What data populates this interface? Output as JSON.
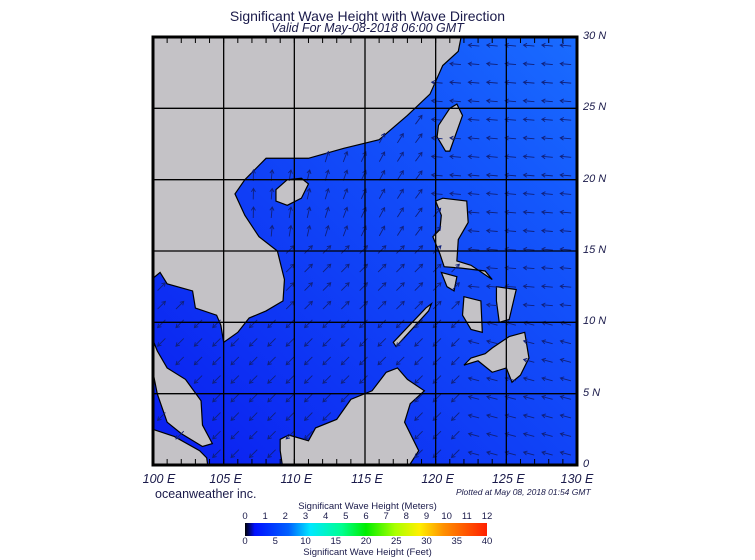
{
  "header": {
    "title": "Significant Wave Height with Wave Direction",
    "subtitle": "Valid For May-08-2018 06:00 GMT"
  },
  "map": {
    "lon_range": [
      100,
      130
    ],
    "lat_range": [
      0,
      30
    ],
    "lat_labels": [
      "30 N",
      "25 N",
      "20 N",
      "15 N",
      "10 N",
      "5 N",
      "0"
    ],
    "lon_labels": [
      "100 E",
      "105 E",
      "110 E",
      "115 E",
      "120 E",
      "125 E",
      "130 E"
    ],
    "colors": {
      "land": "#c4c2c6",
      "ocean_low": "#0a1ef0",
      "ocean_mid": "#1446f8",
      "ocean_high": "#1a6cff",
      "arrow": "#10207a"
    }
  },
  "footer": {
    "brand": "oceanweather inc.",
    "plotted": "Plotted at May 08, 2018 01:54 GMT"
  },
  "colorbar": {
    "title_meters": "Significant Wave Height (Meters)",
    "title_feet": "Significant Wave Height (Feet)",
    "meters_ticks": [
      "0",
      "1",
      "2",
      "3",
      "4",
      "5",
      "6",
      "7",
      "8",
      "9",
      "10",
      "11",
      "12"
    ],
    "feet_ticks": [
      "0",
      "5",
      "10",
      "15",
      "20",
      "25",
      "30",
      "35",
      "40"
    ]
  }
}
